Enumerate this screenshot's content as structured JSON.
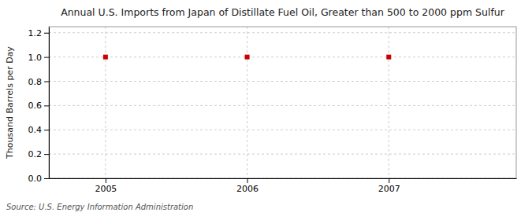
{
  "chart_data": {
    "type": "scatter",
    "title": "Annual U.S. Imports from Japan of Distillate Fuel Oil, Greater than 500 to 2000 ppm Sulfur",
    "ylabel": "Thousand Barrels per Day",
    "source": "Source: U.S. Energy Information Administration",
    "x": [
      2005,
      2006,
      2007
    ],
    "values": [
      1.0,
      1.0,
      1.0
    ],
    "color": "#CC0000",
    "marker": "square",
    "xlim": [
      2004.6,
      2007.9
    ],
    "ylim": [
      0.0,
      1.25
    ],
    "xticks": [
      2005,
      2006,
      2007
    ],
    "yticks": [
      {
        "value": 0.0,
        "label": "0.0"
      },
      0.2,
      0.4,
      0.6,
      0.8,
      {
        "value": 1.0,
        "label": "1.0"
      },
      1.2
    ],
    "grid": true
  }
}
